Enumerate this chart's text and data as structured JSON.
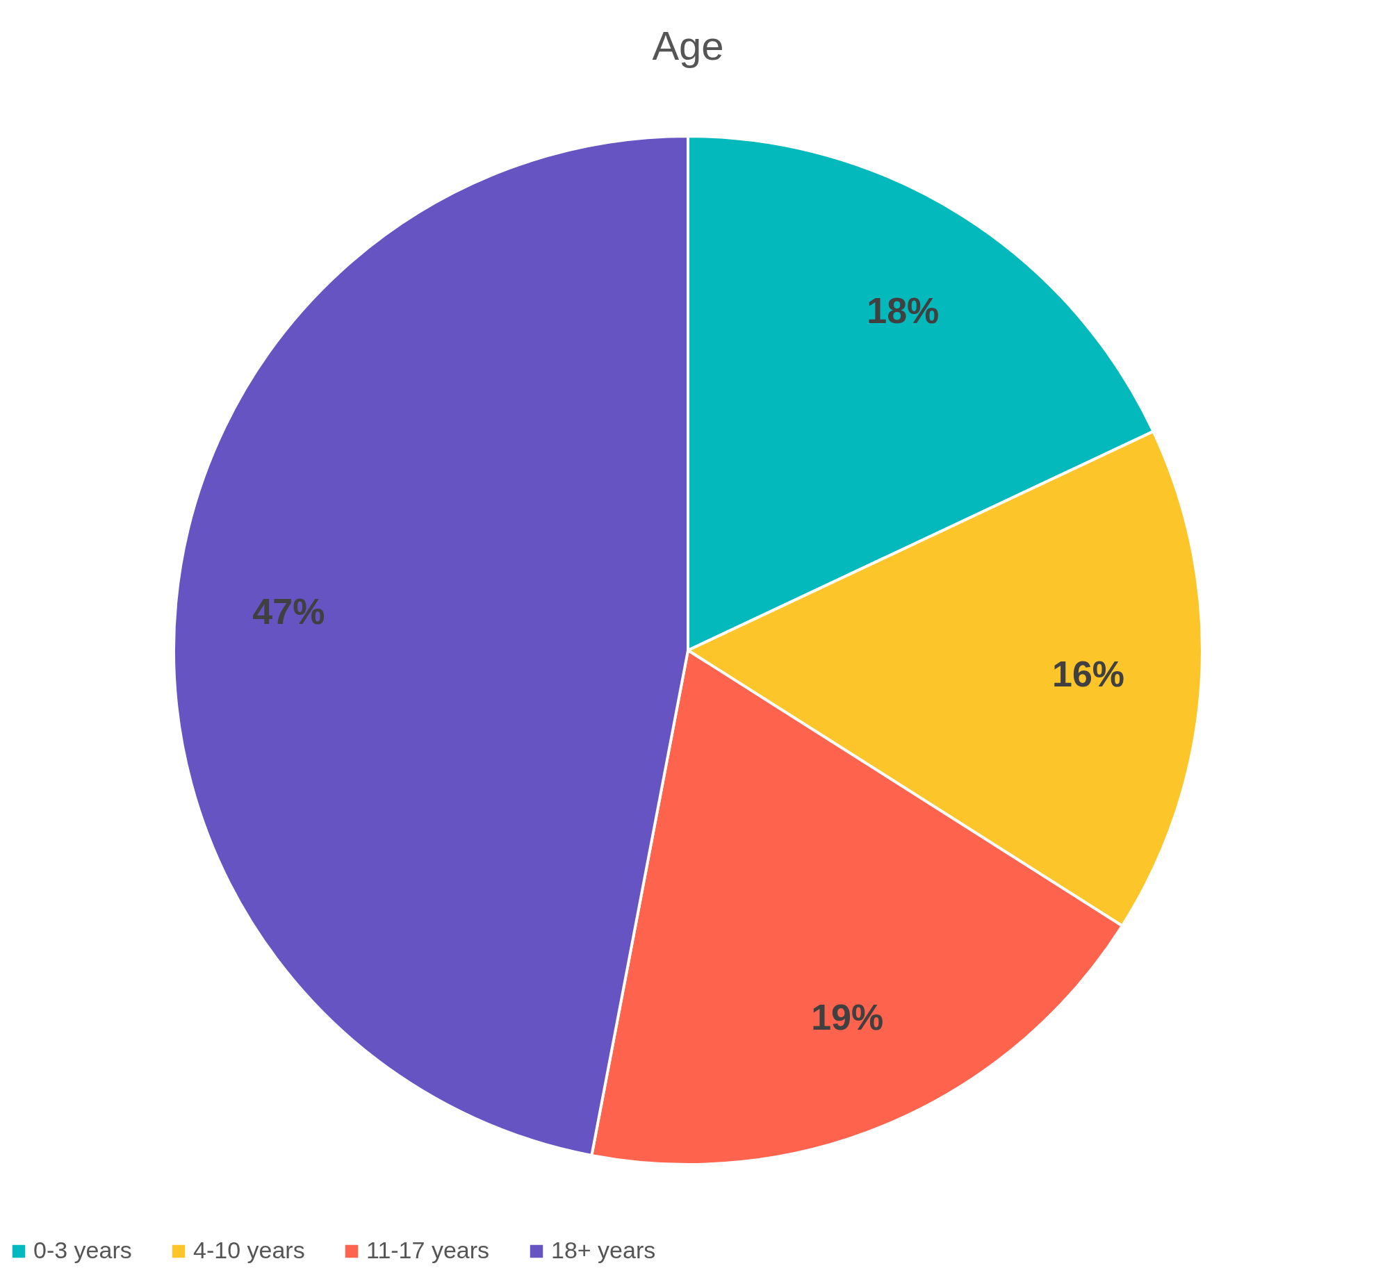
{
  "chart_data": {
    "type": "pie",
    "title": "Age",
    "categories": [
      "0-3 years",
      "4-10 years",
      "11-17 years",
      "18+ years"
    ],
    "values": [
      18,
      16,
      19,
      47
    ],
    "colors": [
      "#04b9bb",
      "#fcc62b",
      "#fe634d",
      "#6554c2"
    ],
    "value_labels": [
      "18%",
      "16%",
      "19%",
      "47%"
    ],
    "legend": "bottom"
  }
}
